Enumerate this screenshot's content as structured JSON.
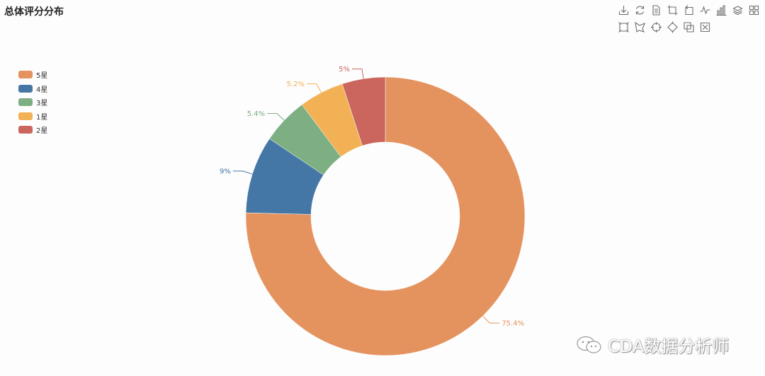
{
  "title": "总体评分分布",
  "watermark": "CDA数据分析师",
  "toolbox": {
    "row1": [
      "download-icon",
      "refresh-icon",
      "data-view-icon",
      "zoom-icon",
      "zoom-reset-icon",
      "line-chart-icon",
      "bar-chart-icon",
      "stack-icon",
      "tiled-icon"
    ],
    "row2": [
      "rect-select-icon",
      "polygon-select-icon",
      "keep-select-icon",
      "clear-select-icon",
      "brush-icon",
      "brush-clear-icon"
    ]
  },
  "chart_data": {
    "type": "pie",
    "variant": "donut",
    "title": "总体评分分布",
    "legend_position": "top-left",
    "series": [
      {
        "name": "5星",
        "value": 75.4,
        "label": "75.4%",
        "color": "#e4935f"
      },
      {
        "name": "4星",
        "value": 9,
        "label": "9%",
        "color": "#4577a6"
      },
      {
        "name": "3星",
        "value": 5.4,
        "label": "5.4%",
        "color": "#7daf82"
      },
      {
        "name": "1星",
        "value": 5.2,
        "label": "5.2%",
        "color": "#f2b155"
      },
      {
        "name": "2星",
        "value": 5,
        "label": "5%",
        "color": "#cb665e"
      }
    ]
  }
}
